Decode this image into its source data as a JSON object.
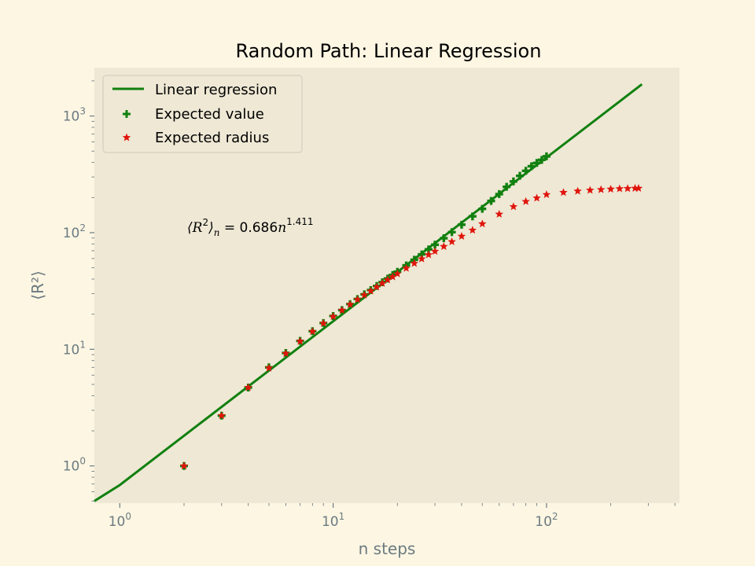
{
  "chart_data": {
    "type": "scatter",
    "title": "Random Path: Linear Regression",
    "xlabel": "n steps",
    "ylabel": "⟨R²⟩",
    "xscale": "log",
    "yscale": "log",
    "xlim": [
      0.76,
      420
    ],
    "ylim": [
      0.48,
      2600
    ],
    "grid": false,
    "legend_position": "top-left",
    "xticks": [
      {
        "value": 1,
        "base": "10",
        "exp": "0"
      },
      {
        "value": 10,
        "base": "10",
        "exp": "1"
      },
      {
        "value": 100,
        "base": "10",
        "exp": "2"
      }
    ],
    "yticks": [
      {
        "value": 1,
        "base": "10",
        "exp": "0"
      },
      {
        "value": 10,
        "base": "10",
        "exp": "1"
      },
      {
        "value": 100,
        "base": "10",
        "exp": "2"
      },
      {
        "value": 1000,
        "base": "10",
        "exp": "3"
      }
    ],
    "annotation": {
      "lhs": "⟨R",
      "lhs_sup": "2",
      "lhs_close": "⟩",
      "lhs_sub": "n",
      "middle": " = 0.686",
      "var": "n",
      "exp": "1.411"
    },
    "colors": {
      "line": "#11800f",
      "expected_value": "#11800f",
      "expected_radius": "#e0150c",
      "axes_bg": "#eee8d5",
      "figure_bg": "#fdf6e3"
    },
    "series": [
      {
        "name": "Linear regression",
        "kind": "line",
        "x": [
          0.76,
          1,
          280
        ],
        "y": [
          0.5,
          0.686,
          1870
        ]
      },
      {
        "name": "Expected value",
        "kind": "scatter",
        "marker": "plus",
        "x": [
          2,
          3,
          4,
          5,
          6,
          7,
          8,
          9,
          10,
          11,
          12,
          13,
          14,
          15,
          16,
          17,
          18,
          19,
          20,
          22,
          24,
          26,
          28,
          30,
          33,
          36,
          40,
          45,
          50,
          55,
          60,
          65,
          70,
          75,
          80,
          85,
          90,
          95,
          100
        ],
        "y": [
          1.0,
          2.7,
          4.7,
          7.0,
          9.3,
          11.8,
          14.3,
          16.8,
          19.3,
          21.7,
          24.4,
          27.0,
          29.6,
          32.2,
          34.9,
          37.6,
          40.4,
          43.3,
          46.2,
          52.4,
          58.6,
          65.1,
          71.9,
          78.8,
          89.6,
          101,
          117,
          138,
          160,
          187,
          214,
          247,
          275,
          307,
          339,
          371,
          396,
          421,
          451
        ]
      },
      {
        "name": "Expected radius",
        "kind": "scatter",
        "marker": "star",
        "x": [
          2,
          3,
          4,
          5,
          6,
          7,
          8,
          9,
          10,
          11,
          12,
          13,
          14,
          15,
          16,
          17,
          18,
          19,
          20,
          22,
          24,
          26,
          28,
          30,
          33,
          36,
          40,
          45,
          50,
          60,
          70,
          80,
          90,
          100,
          120,
          140,
          160,
          180,
          200,
          220,
          240,
          260,
          270
        ],
        "y": [
          1.0,
          2.7,
          4.7,
          6.9,
          9.2,
          11.7,
          14.2,
          16.7,
          19.1,
          21.6,
          24.2,
          26.7,
          29.2,
          31.6,
          34.2,
          36.8,
          39.4,
          41.8,
          44.4,
          49.5,
          54.5,
          59.6,
          64.6,
          69.2,
          76.1,
          83.6,
          93.1,
          105,
          119,
          144,
          167,
          185,
          198,
          212,
          221,
          227,
          231,
          234,
          236,
          238,
          239,
          240,
          240
        ]
      }
    ]
  }
}
